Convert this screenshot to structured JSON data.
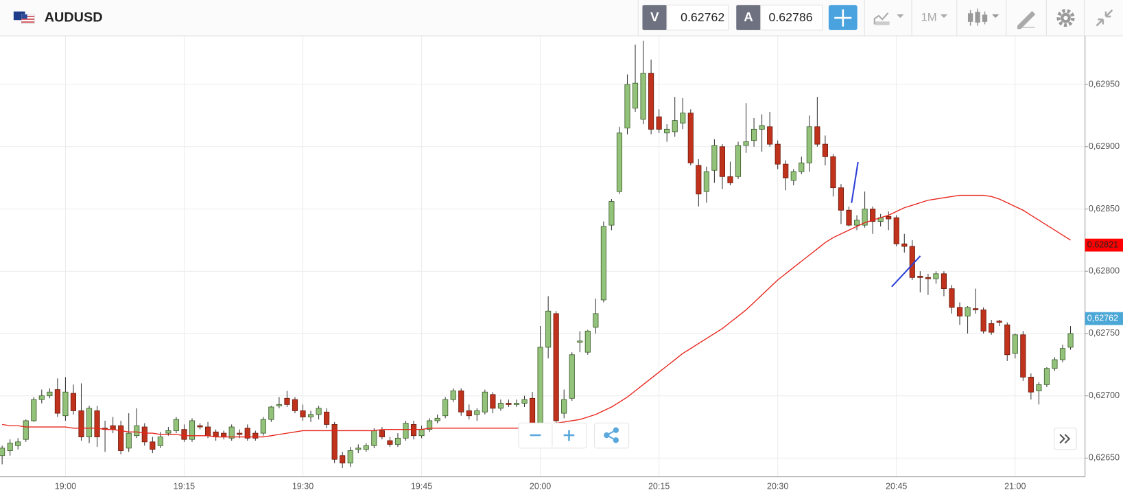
{
  "header": {
    "symbol": "AUDUSD",
    "bid_label": "V",
    "bid": "0.62762",
    "ask_label": "A",
    "ask": "0.62786",
    "timeframe": "1M"
  },
  "chart_data": {
    "type": "candlestick",
    "categories": [
      null,
      null,
      null,
      null,
      null,
      null,
      null,
      null,
      "19:00",
      null,
      null,
      null,
      null,
      null,
      null,
      null,
      null,
      null,
      null,
      null,
      null,
      null,
      null,
      "19:15",
      null,
      null,
      null,
      null,
      null,
      null,
      null,
      null,
      null,
      null,
      null,
      null,
      null,
      null,
      "19:30",
      null,
      null,
      null,
      null,
      null,
      null,
      null,
      null,
      null,
      null,
      null,
      null,
      null,
      null,
      "19:45",
      null,
      null,
      null,
      null,
      null,
      null,
      null,
      null,
      null,
      null,
      null,
      null,
      null,
      null,
      "20:00",
      null,
      null,
      null,
      null,
      null,
      null,
      null,
      null,
      null,
      null,
      null,
      null,
      null,
      null,
      "20:15",
      null,
      null,
      null,
      null,
      null,
      null,
      null,
      null,
      null,
      null,
      null,
      null,
      null,
      null,
      "20:30",
      null,
      null,
      null,
      null,
      null,
      null,
      null,
      null,
      null,
      null,
      null,
      null,
      null,
      null,
      "20:45",
      null,
      null,
      null,
      null,
      null,
      null,
      null,
      null,
      null,
      null,
      null,
      null,
      null,
      null,
      "21:00",
      null,
      null,
      null,
      null,
      null,
      null,
      null
    ],
    "ohlc": [
      [
        0.62652,
        0.6266,
        0.62645,
        0.62658
      ],
      [
        0.62656,
        0.62665,
        0.62652,
        0.62662
      ],
      [
        0.6266,
        0.62666,
        0.62657,
        0.62663
      ],
      [
        0.62665,
        0.62681,
        0.62663,
        0.6268
      ],
      [
        0.6268,
        0.62699,
        0.62679,
        0.62697
      ],
      [
        0.62697,
        0.62705,
        0.62694,
        0.627
      ],
      [
        0.627,
        0.62706,
        0.62698,
        0.62703
      ],
      [
        0.62705,
        0.62714,
        0.62683,
        0.62686
      ],
      [
        0.62684,
        0.62715,
        0.6268,
        0.62703
      ],
      [
        0.62702,
        0.62709,
        0.62685,
        0.62688
      ],
      [
        0.62688,
        0.6271,
        0.62664,
        0.62667
      ],
      [
        0.62667,
        0.62692,
        0.62662,
        0.6269
      ],
      [
        0.62688,
        0.62692,
        0.62659,
        0.62667
      ],
      [
        0.62674,
        0.6268,
        0.62655,
        0.62673
      ],
      [
        0.62676,
        0.62683,
        0.6267,
        0.62673
      ],
      [
        0.62676,
        0.6268,
        0.62653,
        0.62656
      ],
      [
        0.62658,
        0.62686,
        0.62655,
        0.6267
      ],
      [
        0.62668,
        0.6269,
        0.62666,
        0.62676
      ],
      [
        0.62675,
        0.62678,
        0.6266,
        0.62663
      ],
      [
        0.62663,
        0.62667,
        0.62654,
        0.62657
      ],
      [
        0.6266,
        0.62671,
        0.62658,
        0.62667
      ],
      [
        0.6267,
        0.62675,
        0.62668,
        0.62672
      ],
      [
        0.62672,
        0.62683,
        0.6267,
        0.62681
      ],
      [
        0.62673,
        0.62677,
        0.62663,
        0.62665
      ],
      [
        0.62665,
        0.62682,
        0.62663,
        0.6268
      ],
      [
        0.62676,
        0.62678,
        0.62673,
        0.62675
      ],
      [
        0.62675,
        0.62679,
        0.62666,
        0.62668
      ],
      [
        0.62671,
        0.62673,
        0.62664,
        0.62667
      ],
      [
        0.6267,
        0.62672,
        0.62665,
        0.62667
      ],
      [
        0.62666,
        0.62677,
        0.62664,
        0.62675
      ],
      [
        0.6267,
        0.62673,
        0.62666,
        0.62669
      ],
      [
        0.62674,
        0.62677,
        0.62664,
        0.62666
      ],
      [
        0.6267,
        0.62672,
        0.62664,
        0.62666
      ],
      [
        0.6267,
        0.62683,
        0.62668,
        0.62681
      ],
      [
        0.62681,
        0.62692,
        0.62679,
        0.62691
      ],
      [
        0.62692,
        0.62699,
        0.6269,
        0.62693
      ],
      [
        0.62698,
        0.62704,
        0.62691,
        0.62693
      ],
      [
        0.62697,
        0.62699,
        0.62686,
        0.62688
      ],
      [
        0.62688,
        0.62693,
        0.6268,
        0.62683
      ],
      [
        0.62683,
        0.62688,
        0.62679,
        0.62685
      ],
      [
        0.62685,
        0.62692,
        0.62681,
        0.6269
      ],
      [
        0.62687,
        0.6269,
        0.62674,
        0.62677
      ],
      [
        0.62677,
        0.62679,
        0.62646,
        0.62649
      ],
      [
        0.62652,
        0.62655,
        0.62642,
        0.62646
      ],
      [
        0.62646,
        0.62659,
        0.62643,
        0.62656
      ],
      [
        0.62657,
        0.62661,
        0.62654,
        0.62658
      ],
      [
        0.62657,
        0.62662,
        0.62655,
        0.6266
      ],
      [
        0.6266,
        0.62674,
        0.62658,
        0.62672
      ],
      [
        0.62672,
        0.62675,
        0.62665,
        0.62667
      ],
      [
        0.62664,
        0.62667,
        0.62659,
        0.62661
      ],
      [
        0.62661,
        0.6267,
        0.62659,
        0.62666
      ],
      [
        0.62666,
        0.6268,
        0.62664,
        0.62678
      ],
      [
        0.62677,
        0.6268,
        0.62665,
        0.62668
      ],
      [
        0.62668,
        0.62676,
        0.62666,
        0.62673
      ],
      [
        0.62673,
        0.62682,
        0.62671,
        0.6268
      ],
      [
        0.6268,
        0.62685,
        0.62678,
        0.62682
      ],
      [
        0.62684,
        0.62699,
        0.62682,
        0.62697
      ],
      [
        0.62697,
        0.62706,
        0.62695,
        0.62704
      ],
      [
        0.62704,
        0.62706,
        0.62684,
        0.62687
      ],
      [
        0.62688,
        0.62693,
        0.62681,
        0.62684
      ],
      [
        0.62685,
        0.6269,
        0.6268,
        0.62688
      ],
      [
        0.62687,
        0.62705,
        0.62685,
        0.62703
      ],
      [
        0.62701,
        0.62703,
        0.62686,
        0.6269
      ],
      [
        0.6269,
        0.62697,
        0.62688,
        0.62694
      ],
      [
        0.62694,
        0.62697,
        0.62691,
        0.62693
      ],
      [
        0.62693,
        0.62697,
        0.62691,
        0.62694
      ],
      [
        0.62694,
        0.627,
        0.62691,
        0.62697
      ],
      [
        0.62698,
        0.62703,
        0.62672,
        0.62675
      ],
      [
        0.62675,
        0.62756,
        0.62672,
        0.62739
      ],
      [
        0.62739,
        0.6278,
        0.6273,
        0.62768
      ],
      [
        0.62766,
        0.62768,
        0.62677,
        0.6268
      ],
      [
        0.62686,
        0.62705,
        0.62682,
        0.62697
      ],
      [
        0.62698,
        0.62735,
        0.62696,
        0.62733
      ],
      [
        0.62743,
        0.62752,
        0.62735,
        0.62744
      ],
      [
        0.62735,
        0.62753,
        0.62733,
        0.62752
      ],
      [
        0.62755,
        0.62778,
        0.6275,
        0.62766
      ],
      [
        0.62777,
        0.6284,
        0.62775,
        0.62836
      ],
      [
        0.62837,
        0.62858,
        0.62833,
        0.62856
      ],
      [
        0.62864,
        0.62916,
        0.62862,
        0.62911
      ],
      [
        0.62915,
        0.62958,
        0.6291,
        0.6295
      ],
      [
        0.62931,
        0.62982,
        0.62928,
        0.62951
      ],
      [
        0.62922,
        0.62985,
        0.62918,
        0.62959
      ],
      [
        0.62959,
        0.6297,
        0.6291,
        0.62914
      ],
      [
        0.62924,
        0.6293,
        0.62911,
        0.62914
      ],
      [
        0.62911,
        0.62918,
        0.62904,
        0.62914
      ],
      [
        0.62912,
        0.6294,
        0.62908,
        0.62921
      ],
      [
        0.62919,
        0.62939,
        0.62914,
        0.62927
      ],
      [
        0.62927,
        0.6293,
        0.62885,
        0.62887
      ],
      [
        0.62885,
        0.6289,
        0.62852,
        0.62862
      ],
      [
        0.62864,
        0.62884,
        0.62855,
        0.6288
      ],
      [
        0.62881,
        0.62906,
        0.62871,
        0.62901
      ],
      [
        0.629,
        0.62902,
        0.62866,
        0.62876
      ],
      [
        0.62876,
        0.62888,
        0.62869,
        0.62871
      ],
      [
        0.62876,
        0.62904,
        0.62874,
        0.62901
      ],
      [
        0.62901,
        0.62935,
        0.62895,
        0.62904
      ],
      [
        0.62905,
        0.62923,
        0.629,
        0.62914
      ],
      [
        0.62914,
        0.62926,
        0.62896,
        0.62917
      ],
      [
        0.62916,
        0.62928,
        0.629,
        0.62902
      ],
      [
        0.62902,
        0.62905,
        0.62882,
        0.62886
      ],
      [
        0.62886,
        0.62889,
        0.62865,
        0.62875
      ],
      [
        0.62873,
        0.62882,
        0.62869,
        0.6288
      ],
      [
        0.6288,
        0.62892,
        0.62878,
        0.62887
      ],
      [
        0.62887,
        0.62925,
        0.6288,
        0.62916
      ],
      [
        0.62916,
        0.6294,
        0.629,
        0.62902
      ],
      [
        0.62902,
        0.62909,
        0.62885,
        0.62892
      ],
      [
        0.62892,
        0.62894,
        0.6286,
        0.62867
      ],
      [
        0.62867,
        0.6287,
        0.62838,
        0.62849
      ],
      [
        0.62849,
        0.62852,
        0.62836,
        0.62837
      ],
      [
        0.62837,
        0.62845,
        0.62833,
        0.62841
      ],
      [
        0.62837,
        0.62864,
        0.62835,
        0.6285
      ],
      [
        0.6285,
        0.62852,
        0.6283,
        0.6284
      ],
      [
        0.6284,
        0.62846,
        0.62836,
        0.62843
      ],
      [
        0.62844,
        0.62848,
        0.62833,
        0.62842
      ],
      [
        0.62843,
        0.62845,
        0.6282,
        0.62822
      ],
      [
        0.62822,
        0.6283,
        0.62815,
        0.6282
      ],
      [
        0.6282,
        0.62825,
        0.62793,
        0.62795
      ],
      [
        0.62796,
        0.628,
        0.62783,
        0.62795
      ],
      [
        0.62795,
        0.62798,
        0.62781,
        0.62794
      ],
      [
        0.62794,
        0.628,
        0.6279,
        0.62798
      ],
      [
        0.62798,
        0.628,
        0.6278,
        0.62786
      ],
      [
        0.62786,
        0.62789,
        0.62766,
        0.62771
      ],
      [
        0.62771,
        0.62775,
        0.62757,
        0.62764
      ],
      [
        0.62764,
        0.62772,
        0.6275,
        0.62771
      ],
      [
        0.6277,
        0.62786,
        0.62766,
        0.62769
      ],
      [
        0.62769,
        0.62771,
        0.6275,
        0.62752
      ],
      [
        0.62758,
        0.62761,
        0.62749,
        0.62751
      ],
      [
        0.6276,
        0.62761,
        0.62756,
        0.62759
      ],
      [
        0.62757,
        0.62759,
        0.62728,
        0.62733
      ],
      [
        0.62734,
        0.6275,
        0.6273,
        0.62749
      ],
      [
        0.62749,
        0.62752,
        0.62712,
        0.62715
      ],
      [
        0.62715,
        0.62718,
        0.62697,
        0.62703
      ],
      [
        0.62704,
        0.62711,
        0.62693,
        0.62709
      ],
      [
        0.62709,
        0.62723,
        0.62707,
        0.62722
      ],
      [
        0.62722,
        0.62731,
        0.6272,
        0.62729
      ],
      [
        0.62729,
        0.62741,
        0.62727,
        0.62738
      ],
      [
        0.62739,
        0.62756,
        0.62737,
        0.6275
      ]
    ],
    "up_color": "#93c27a",
    "down_color": "#c0321c",
    "overlay": {
      "color": "#e8231a",
      "values": [
        0.62677,
        0.62676,
        0.62676,
        0.62675,
        0.62675,
        0.62675,
        0.62675,
        0.62675,
        0.62675,
        0.62674,
        0.62674,
        0.62674,
        0.62674,
        0.62673,
        0.62673,
        0.62672,
        0.62671,
        0.62671,
        0.6267,
        0.6267,
        0.62669,
        0.62669,
        0.62669,
        0.62668,
        0.62668,
        0.62668,
        0.62668,
        0.62667,
        0.62667,
        0.62667,
        0.62667,
        0.62667,
        0.62667,
        0.62667,
        0.62668,
        0.62669,
        0.6267,
        0.62671,
        0.62672,
        0.62672,
        0.62672,
        0.62672,
        0.62672,
        0.62672,
        0.62672,
        0.62672,
        0.62672,
        0.62672,
        0.62673,
        0.62673,
        0.62673,
        0.62673,
        0.62673,
        0.62673,
        0.62674,
        0.62674,
        0.62674,
        0.62674,
        0.62674,
        0.62674,
        0.62674,
        0.62674,
        0.62674,
        0.62674,
        0.62674,
        0.62674,
        0.62674,
        0.62675,
        0.62676,
        0.62677,
        0.62678,
        0.62679,
        0.6268,
        0.62681,
        0.62683,
        0.62685,
        0.62688,
        0.62691,
        0.62695,
        0.62699,
        0.62704,
        0.62709,
        0.62714,
        0.62719,
        0.62724,
        0.62729,
        0.62734,
        0.62738,
        0.62742,
        0.62746,
        0.6275,
        0.62754,
        0.62759,
        0.62764,
        0.62769,
        0.62775,
        0.62781,
        0.62787,
        0.62793,
        0.62798,
        0.62803,
        0.62808,
        0.62813,
        0.62818,
        0.62823,
        0.62827,
        0.6283,
        0.62833,
        0.62836,
        0.62839,
        0.62841,
        0.62843,
        0.62845,
        0.62848,
        0.62851,
        0.62853,
        0.62855,
        0.62857,
        0.62858,
        0.62859,
        0.6286,
        0.62861,
        0.62861,
        0.62861,
        0.62861,
        0.6286,
        0.62858,
        0.62855,
        0.62852,
        0.62849,
        0.62845,
        0.62841,
        0.62837,
        0.62833,
        0.62829,
        0.62825
      ]
    },
    "ylim": [
      0.62635,
      0.62989
    ],
    "yticks": [
      {
        "value": 0.6265,
        "label": "0,62650"
      },
      {
        "value": 0.627,
        "label": "0,62700"
      },
      {
        "value": 0.6275,
        "label": "0,62750"
      },
      {
        "value": 0.628,
        "label": "0,62800"
      },
      {
        "value": 0.6285,
        "label": "0,62850"
      },
      {
        "value": 0.629,
        "label": "0,62900"
      },
      {
        "value": 0.6295,
        "label": "0,62950"
      }
    ],
    "grid": true,
    "price_tags": [
      {
        "value": 0.62821,
        "label": "0,62821",
        "color": "#ff0000"
      },
      {
        "value": 0.62762,
        "label": "0,62762",
        "color": "#4ba7d6"
      }
    ]
  }
}
